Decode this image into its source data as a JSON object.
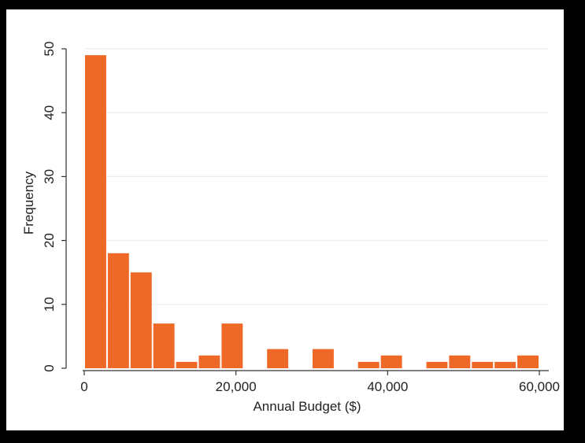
{
  "chart_data": {
    "type": "bar",
    "xlabel": "Annual Budget ($)",
    "ylabel": "Frequency",
    "xlim": [
      0,
      60000
    ],
    "ylim": [
      0,
      50
    ],
    "x_ticks": [
      "0",
      "20,000",
      "40,000",
      "60,000"
    ],
    "x_tick_values": [
      0,
      20000,
      40000,
      60000
    ],
    "y_ticks": [
      "0",
      "10",
      "20",
      "30",
      "40",
      "50"
    ],
    "y_tick_values": [
      0,
      10,
      20,
      30,
      40,
      50
    ],
    "bin_width": 3000,
    "bins": [
      {
        "x0": 0,
        "x1": 3000,
        "value": 49
      },
      {
        "x0": 3000,
        "x1": 6000,
        "value": 18
      },
      {
        "x0": 6000,
        "x1": 9000,
        "value": 15
      },
      {
        "x0": 9000,
        "x1": 12000,
        "value": 7
      },
      {
        "x0": 12000,
        "x1": 15000,
        "value": 1
      },
      {
        "x0": 15000,
        "x1": 18000,
        "value": 2
      },
      {
        "x0": 18000,
        "x1": 21000,
        "value": 7
      },
      {
        "x0": 21000,
        "x1": 24000,
        "value": 0
      },
      {
        "x0": 24000,
        "x1": 27000,
        "value": 3
      },
      {
        "x0": 27000,
        "x1": 30000,
        "value": 0
      },
      {
        "x0": 30000,
        "x1": 33000,
        "value": 3
      },
      {
        "x0": 33000,
        "x1": 36000,
        "value": 0
      },
      {
        "x0": 36000,
        "x1": 39000,
        "value": 1
      },
      {
        "x0": 39000,
        "x1": 42000,
        "value": 2
      },
      {
        "x0": 42000,
        "x1": 45000,
        "value": 0
      },
      {
        "x0": 45000,
        "x1": 48000,
        "value": 1
      },
      {
        "x0": 48000,
        "x1": 51000,
        "value": 2
      },
      {
        "x0": 51000,
        "x1": 54000,
        "value": 1
      },
      {
        "x0": 54000,
        "x1": 57000,
        "value": 1
      },
      {
        "x0": 57000,
        "x1": 60000,
        "value": 2
      }
    ],
    "grid": true,
    "colors": {
      "bar": "#ee6828",
      "gridline": "#e6eef3",
      "axis": "#333333",
      "background": "#ffffff",
      "frame": "#000000"
    }
  }
}
